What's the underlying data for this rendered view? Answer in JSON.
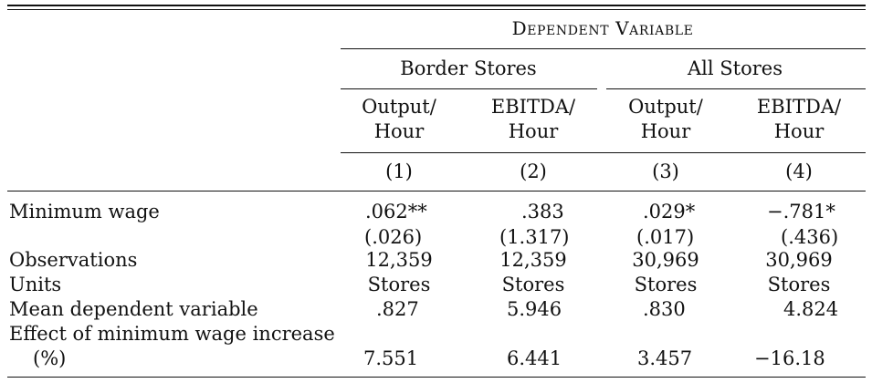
{
  "table": {
    "spanner": "Dependent Variable",
    "groups": [
      "Border Stores",
      "All Stores"
    ],
    "columns": [
      {
        "line1": "Output/",
        "line2": "Hour",
        "number": "(1)"
      },
      {
        "line1": "EBITDA/",
        "line2": "Hour",
        "number": "(2)"
      },
      {
        "line1": "Output/",
        "line2": "Hour",
        "number": "(3)"
      },
      {
        "line1": "EBITDA/",
        "line2": "Hour",
        "number": "(4)"
      }
    ],
    "rows": {
      "min_wage": {
        "label": "Minimum wage",
        "values": [
          ".062**",
          ".383",
          ".029*",
          "−.781*"
        ],
        "se": [
          "(.026)",
          "(1.317)",
          "(.017)",
          "(.436)"
        ]
      },
      "observations": {
        "label": "Observations",
        "values": [
          "12,359",
          "12,359",
          "30,969",
          "30,969"
        ]
      },
      "units": {
        "label": "Units",
        "values": [
          "Stores",
          "Stores",
          "Stores",
          "Stores"
        ]
      },
      "mean_dep": {
        "label": "Mean dependent variable",
        "values": [
          ".827",
          "5.946",
          ".830",
          "4.824"
        ]
      },
      "effect": {
        "label_line1": "Effect of minimum wage increase",
        "label_line2": "(%)",
        "values": [
          "7.551",
          "6.441",
          "3.457",
          "−16.18"
        ]
      }
    }
  }
}
